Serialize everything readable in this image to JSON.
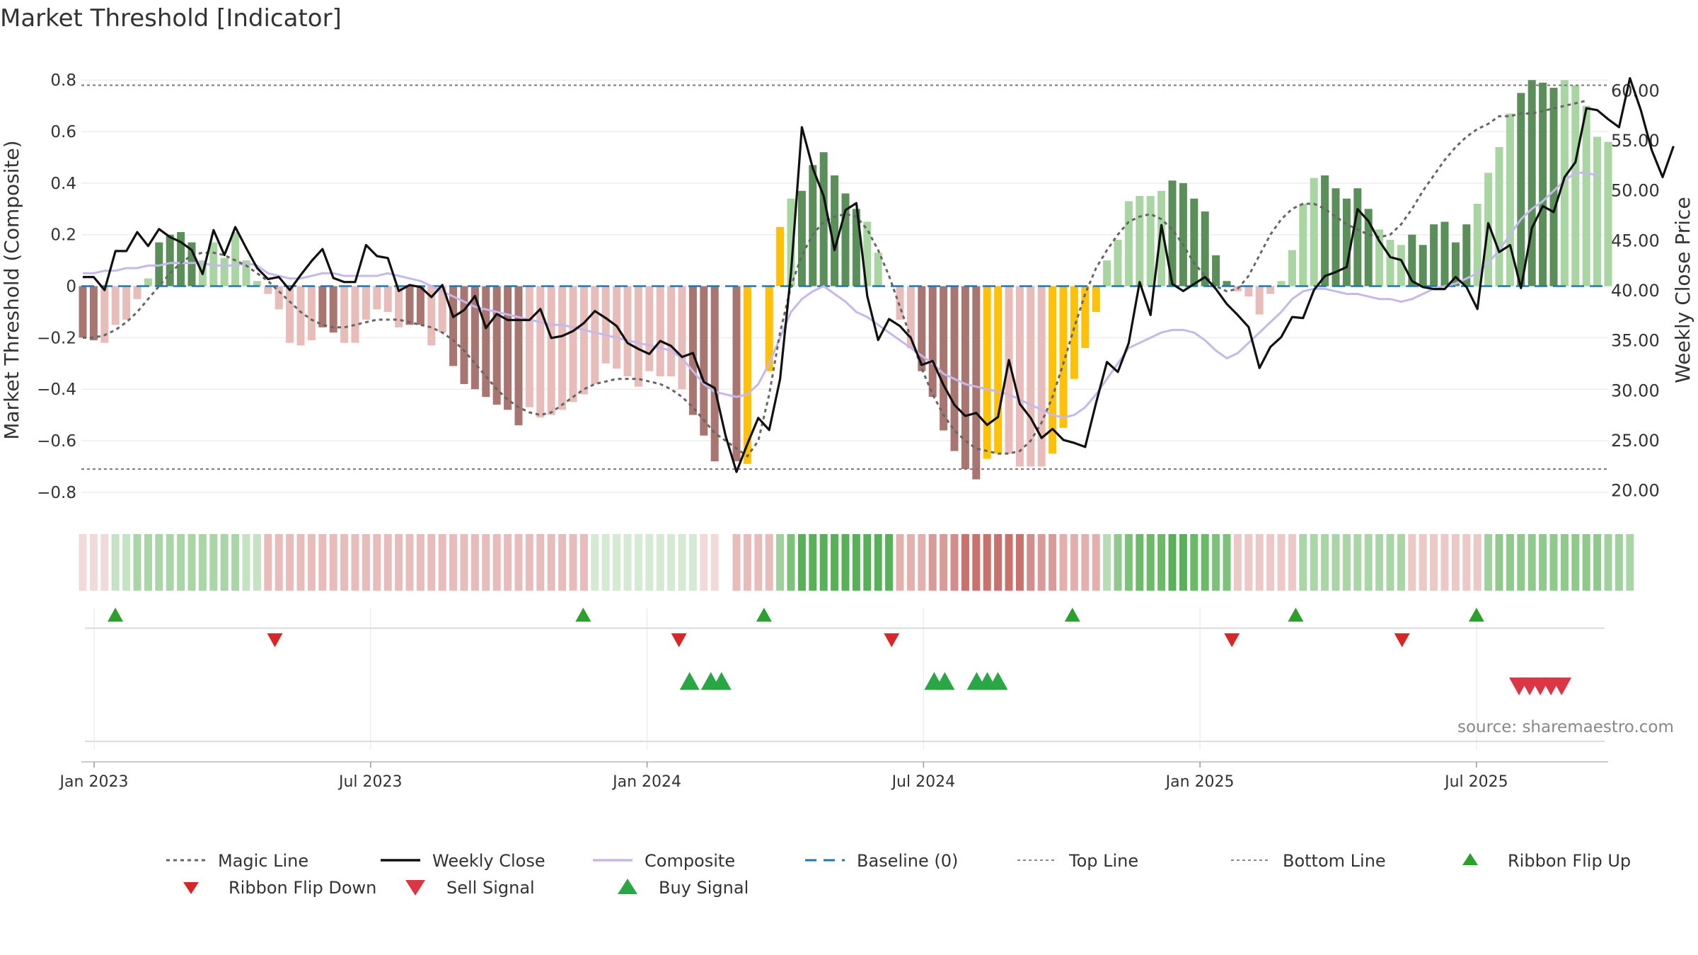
{
  "title": "Market Threshold [Indicator]",
  "source": "source: sharemaestro.com",
  "colors": {
    "dark_green": "#5a8f5a",
    "light_green": "#a8d5a2",
    "dark_red": "#a87570",
    "light_red": "#e8bcb8",
    "gold": "#ffc107",
    "composite": "#c5b8ea",
    "close": "#111111",
    "magic": "#666666",
    "baseline": "#1f77b4",
    "buy": "#2ca02c",
    "sell": "#d62728"
  },
  "chart_data": {
    "type": "bar",
    "title": "Market Threshold [Indicator]",
    "ylabel_left": "Market Threshold (Composite)",
    "ylabel_right": "Weekly Close Price",
    "ylim_left": [
      -0.88,
      0.85
    ],
    "ylim_right": [
      17.7,
      62.3
    ],
    "left_ticks": [
      "0.8",
      "0.6",
      "0.4",
      "0.2",
      "0",
      "−0.2",
      "−0.4",
      "−0.6",
      "−0.8"
    ],
    "right_ticks": [
      "60.00",
      "55.00",
      "50.00",
      "45.00",
      "40.00",
      "35.00",
      "30.00",
      "25.00",
      "20.00"
    ],
    "x_ticks": [
      {
        "label": "Jan 2023",
        "week": 1
      },
      {
        "label": "Jul 2023",
        "week": 27
      },
      {
        "label": "Jan 2024",
        "week": 53
      },
      {
        "label": "Jul 2024",
        "week": 79
      },
      {
        "label": "Jan 2025",
        "week": 105
      },
      {
        "label": "Jul 2025",
        "week": 131
      }
    ],
    "top_line": 0.78,
    "bottom_line": -0.71,
    "baseline": 0,
    "bars": [
      -0.2,
      -0.21,
      -0.22,
      -0.15,
      -0.13,
      -0.05,
      0.03,
      0.17,
      0.2,
      0.21,
      0.17,
      0.1,
      0.17,
      0.11,
      0.21,
      0.1,
      0.02,
      -0.03,
      -0.09,
      -0.22,
      -0.23,
      -0.21,
      -0.16,
      -0.18,
      -0.22,
      -0.22,
      -0.13,
      -0.09,
      -0.1,
      -0.16,
      -0.15,
      -0.15,
      -0.23,
      -0.18,
      -0.31,
      -0.38,
      -0.4,
      -0.43,
      -0.46,
      -0.48,
      -0.54,
      -0.47,
      -0.51,
      -0.5,
      -0.48,
      -0.45,
      -0.42,
      -0.38,
      -0.3,
      -0.32,
      -0.35,
      -0.39,
      -0.33,
      -0.35,
      -0.35,
      -0.4,
      -0.5,
      -0.58,
      -0.68,
      0,
      -0.68,
      -0.69,
      -0.58,
      -0.33,
      0.23,
      0.34,
      0.37,
      0.47,
      0.52,
      0.43,
      0.36,
      0.3,
      0.25,
      0.13,
      0,
      -0.13,
      -0.24,
      -0.33,
      -0.43,
      -0.56,
      -0.64,
      -0.71,
      -0.75,
      -0.67,
      -0.65,
      -0.65,
      -0.7,
      -0.7,
      -0.7,
      -0.65,
      -0.55,
      -0.36,
      -0.24,
      -0.1,
      0.1,
      0.18,
      0.33,
      0.35,
      0.35,
      0.37,
      0.41,
      0.4,
      0.34,
      0.29,
      0.12,
      0.02,
      -0.02,
      -0.04,
      -0.11,
      -0.03,
      0.02,
      0.14,
      0.32,
      0.42,
      0.43,
      0.38,
      0.34,
      0.38,
      0.3,
      0.22,
      0.18,
      0.16,
      0.2,
      0.16,
      0.24,
      0.25,
      0.17,
      0.24,
      0.32,
      0.44,
      0.54,
      0.67,
      0.75,
      0.8,
      0.79,
      0.77,
      0.8,
      0.78,
      0.7,
      0.58,
      0.56
    ],
    "bar_colors": "ddlllllddddlllllllllllddllllllddlldddddddllllllllllllllldddddyxyylddddddlllllddddddyyllllyyyyyllllllddddddlllllllldddddlllddddddllllddddllllldddddyyyyyyyll",
    "composite": [
      0.05,
      0.05,
      0.06,
      0.06,
      0.07,
      0.07,
      0.08,
      0.08,
      0.09,
      0.09,
      0.09,
      0.09,
      0.08,
      0.08,
      0.08,
      0.09,
      0.08,
      0.05,
      0.04,
      0.03,
      0.03,
      0.04,
      0.05,
      0.05,
      0.04,
      0.04,
      0.04,
      0.04,
      0.05,
      0.04,
      0.03,
      0.02,
      0.0,
      -0.02,
      -0.04,
      -0.06,
      -0.08,
      -0.09,
      -0.1,
      -0.11,
      -0.12,
      -0.13,
      -0.14,
      -0.15,
      -0.15,
      -0.16,
      -0.17,
      -0.18,
      -0.19,
      -0.2,
      -0.21,
      -0.22,
      -0.23,
      -0.24,
      -0.25,
      -0.28,
      -0.33,
      -0.38,
      -0.41,
      -0.42,
      -0.43,
      -0.42,
      -0.38,
      -0.3,
      -0.2,
      -0.1,
      -0.05,
      -0.02,
      0.0,
      -0.03,
      -0.06,
      -0.1,
      -0.12,
      -0.15,
      -0.18,
      -0.21,
      -0.24,
      -0.27,
      -0.3,
      -0.34,
      -0.36,
      -0.38,
      -0.39,
      -0.4,
      -0.41,
      -0.42,
      -0.44,
      -0.46,
      -0.48,
      -0.5,
      -0.51,
      -0.5,
      -0.47,
      -0.42,
      -0.36,
      -0.3,
      -0.24,
      -0.22,
      -0.2,
      -0.18,
      -0.17,
      -0.17,
      -0.18,
      -0.21,
      -0.25,
      -0.28,
      -0.26,
      -0.22,
      -0.18,
      -0.14,
      -0.1,
      -0.05,
      -0.02,
      -0.01,
      -0.01,
      -0.02,
      -0.03,
      -0.03,
      -0.04,
      -0.05,
      -0.05,
      -0.06,
      -0.05,
      -0.03,
      -0.01,
      0.0,
      0.01,
      0.03,
      0.05,
      0.09,
      0.14,
      0.2,
      0.26,
      0.3,
      0.33,
      0.37,
      0.41,
      0.44,
      0.44,
      0.43
    ],
    "magic": [
      -0.2,
      -0.2,
      -0.19,
      -0.17,
      -0.14,
      -0.1,
      -0.05,
      0.0,
      0.05,
      0.09,
      0.12,
      0.13,
      0.13,
      0.12,
      0.1,
      0.08,
      0.05,
      0.02,
      -0.02,
      -0.06,
      -0.1,
      -0.13,
      -0.15,
      -0.16,
      -0.16,
      -0.15,
      -0.14,
      -0.13,
      -0.13,
      -0.13,
      -0.14,
      -0.15,
      -0.16,
      -0.18,
      -0.21,
      -0.25,
      -0.3,
      -0.35,
      -0.4,
      -0.44,
      -0.47,
      -0.49,
      -0.5,
      -0.49,
      -0.46,
      -0.43,
      -0.4,
      -0.38,
      -0.37,
      -0.36,
      -0.36,
      -0.36,
      -0.37,
      -0.38,
      -0.4,
      -0.43,
      -0.47,
      -0.52,
      -0.57,
      -0.6,
      -0.63,
      -0.66,
      -0.6,
      -0.42,
      -0.18,
      0.0,
      0.12,
      0.2,
      0.25,
      0.27,
      0.28,
      0.27,
      0.22,
      0.14,
      0.04,
      -0.08,
      -0.2,
      -0.32,
      -0.42,
      -0.5,
      -0.56,
      -0.6,
      -0.63,
      -0.64,
      -0.65,
      -0.65,
      -0.64,
      -0.6,
      -0.53,
      -0.43,
      -0.3,
      -0.16,
      -0.03,
      0.07,
      0.14,
      0.2,
      0.25,
      0.27,
      0.28,
      0.26,
      0.22,
      0.16,
      0.09,
      0.04,
      0.0,
      -0.02,
      -0.01,
      0.04,
      0.12,
      0.2,
      0.26,
      0.3,
      0.32,
      0.32,
      0.3,
      0.27,
      0.24,
      0.22,
      0.2,
      0.19,
      0.2,
      0.24,
      0.3,
      0.37,
      0.43,
      0.49,
      0.54,
      0.58,
      0.61,
      0.63,
      0.66,
      0.66,
      0.67,
      0.67,
      0.68,
      0.69,
      0.7,
      0.71,
      0.72
    ],
    "weekly_close": [
      41.3,
      41.3,
      40.0,
      43.9,
      43.9,
      45.8,
      44.4,
      46.1,
      45.3,
      44.8,
      44.0,
      41.6,
      46.0,
      43.5,
      46.3,
      44.2,
      42.2,
      41.1,
      41.3,
      40.0,
      41.5,
      42.9,
      44.1,
      41.2,
      40.8,
      40.8,
      44.5,
      43.4,
      43.2,
      39.9,
      40.5,
      40.3,
      39.3,
      40.5,
      37.3,
      38.0,
      39.4,
      36.2,
      37.6,
      37.0,
      37.0,
      37.0,
      38.1,
      35.2,
      35.4,
      35.9,
      36.7,
      37.9,
      37.2,
      36.4,
      34.7,
      34.1,
      33.6,
      34.9,
      34.4,
      33.3,
      33.7,
      30.8,
      30.2,
      25.4,
      21.8,
      24.6,
      27.2,
      26.0,
      31.1,
      41.7,
      56.3,
      52.2,
      49.4,
      44.0,
      48.0,
      48.7,
      39.4,
      35.0,
      37.1,
      36.4,
      35.2,
      32.5,
      32.9,
      30.5,
      28.5,
      27.4,
      27.7,
      26.5,
      27.3,
      33.0,
      28.6,
      27.2,
      25.2,
      26.1,
      25.0,
      24.7,
      24.3,
      28.7,
      32.8,
      31.8,
      34.7,
      40.8,
      37.5,
      46.5,
      40.6,
      39.9,
      40.6,
      41.3,
      40.1,
      38.6,
      37.5,
      36.3,
      32.2,
      34.3,
      35.3,
      37.3,
      37.2,
      40.0,
      41.4,
      41.8,
      42.3,
      48.1,
      46.9,
      44.9,
      43.3,
      43.0,
      40.9,
      40.3,
      40.1,
      40.1,
      41.3,
      40.3,
      38.1,
      46.7,
      43.8,
      44.5,
      40.2,
      46.2,
      48.4,
      47.8,
      51.3,
      52.8,
      58.2,
      58.0,
      57.1,
      56.3,
      61.2,
      58.0,
      54.0,
      51.3,
      54.4
    ],
    "ribbon_colors": [
      "#f2dada",
      "#f2dada",
      "#f2dada",
      "#c4e3c3",
      "#c4e3c3",
      "#a9d5a7",
      "#a9d5a7",
      "#a9d5a7",
      "#a9d5a7",
      "#a9d5a7",
      "#a9d5a7",
      "#a9d5a7",
      "#a9d5a7",
      "#a9d5a7",
      "#a9d5a7",
      "#c4e3c3",
      "#c4e3c3",
      "#e7bcbb",
      "#e7bcbb",
      "#e7bcbb",
      "#e7bcbb",
      "#e7bcbb",
      "#e7bcbb",
      "#e7bcbb",
      "#e7bcbb",
      "#e7bcbb",
      "#e7bcbb",
      "#e7bcbb",
      "#e7bcbb",
      "#e7bcbb",
      "#e7bcbb",
      "#e7bcbb",
      "#e7bcbb",
      "#e7bcbb",
      "#e7bcbb",
      "#e7bcbb",
      "#e7bcbb",
      "#e7bcbb",
      "#e7bcbb",
      "#e7bcbb",
      "#e7bcbb",
      "#e7bcbb",
      "#e7bcbb",
      "#e7bcbb",
      "#e7bcbb",
      "#e7bcbb",
      "#e7bcbb",
      "#d4ead3",
      "#d4ead3",
      "#d4ead3",
      "#d4ead3",
      "#d4ead3",
      "#d4ead3",
      "#d4ead3",
      "#d4ead3",
      "#d4ead3",
      "#d4ead3",
      "#f2dada",
      "#f2dada",
      "#ffffff",
      "#e7bcbb",
      "#e7bcbb",
      "#e7bcbb",
      "#e7bcbb",
      "#9fd09d",
      "#7cc27a",
      "#58b158",
      "#58b158",
      "#58b158",
      "#58b158",
      "#58b158",
      "#58b158",
      "#58b158",
      "#58b158",
      "#58b158",
      "#e3b0ad",
      "#e3b0ad",
      "#e3b0ad",
      "#d99b98",
      "#d99b98",
      "#d38d8a",
      "#c8716d",
      "#c8716d",
      "#c8716d",
      "#c8716d",
      "#c8716d",
      "#c8716d",
      "#d38d8a",
      "#d99b98",
      "#d99b98",
      "#e3b0ad",
      "#e3b0ad",
      "#e3b0ad",
      "#e3b0ad",
      "#b8dcb6",
      "#8fca8c",
      "#7cc27a",
      "#6bba68",
      "#6bba68",
      "#6bba68",
      "#58b158",
      "#58b158",
      "#6bba68",
      "#6bba68",
      "#7cc27a",
      "#7cc27a",
      "#ecc8c6",
      "#ecc8c6",
      "#ecc8c6",
      "#ecc8c6",
      "#ecc8c6",
      "#ecc8c6",
      "#a9d5a7",
      "#a9d5a7",
      "#a9d5a7",
      "#a9d5a7",
      "#a9d5a7",
      "#a9d5a7",
      "#a9d5a7",
      "#a9d5a7",
      "#a9d5a7",
      "#a9d5a7",
      "#ecc8c6",
      "#ecc8c6",
      "#ecc8c6",
      "#ecc8c6",
      "#ecc8c6",
      "#ecc8c6",
      "#ecc8c6",
      "#9fd09d",
      "#8fca8c",
      "#8fca8c",
      "#8fca8c",
      "#8fca8c",
      "#8fca8c",
      "#8fca8c",
      "#8fca8c",
      "#8fca8c",
      "#8fca8c",
      "#8fca8c",
      "#9fd09d",
      "#9fd09d",
      "#a9d5a7"
    ],
    "ribbon_flip_up_weeks": [
      3,
      47,
      64,
      93,
      114,
      131
    ],
    "ribbon_flip_down_weeks": [
      18,
      56,
      76,
      108,
      124
    ],
    "buy_signal_weeks": [
      57,
      59,
      60,
      80,
      81,
      84,
      85,
      86
    ],
    "sell_signal_weeks": [
      135,
      136,
      137,
      138,
      139
    ]
  },
  "legend": [
    {
      "label": "Magic Line",
      "symbol": "dotted",
      "color": "#666666"
    },
    {
      "label": "Weekly Close",
      "symbol": "solid",
      "color": "#111111"
    },
    {
      "label": "Composite",
      "symbol": "solid",
      "color": "#c5b8ea"
    },
    {
      "label": "Baseline (0)",
      "symbol": "dashed",
      "color": "#1f77b4"
    },
    {
      "label": "Top Line",
      "symbol": "dotted-light",
      "color": "#888888"
    },
    {
      "label": "Bottom Line",
      "symbol": "dotted-light",
      "color": "#888888"
    },
    {
      "label": "Ribbon Flip Up",
      "symbol": "tri-up",
      "color": "#2ca02c"
    },
    {
      "label": "Ribbon Flip Down",
      "symbol": "tri-down",
      "color": "#d62728"
    },
    {
      "label": "Sell Signal",
      "symbol": "tri-down-big",
      "color": "#dc3545"
    },
    {
      "label": "Buy Signal",
      "symbol": "tri-up-big",
      "color": "#28a745"
    }
  ]
}
